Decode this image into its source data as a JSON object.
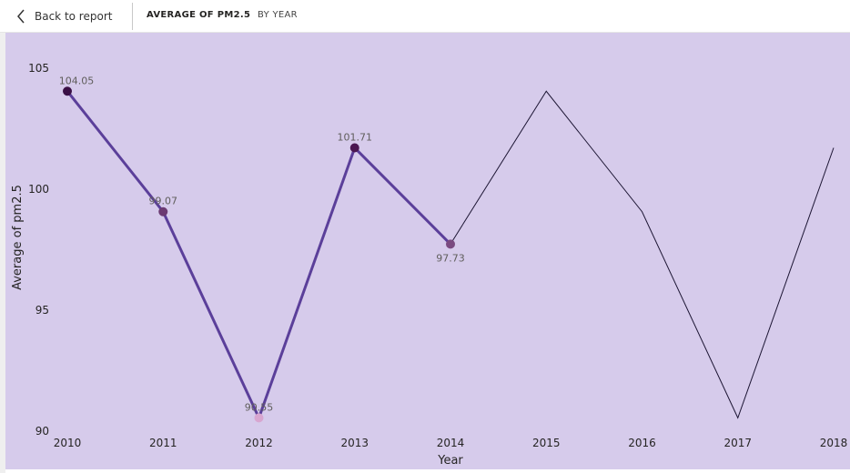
{
  "header": {
    "back_label": "Back to report",
    "title": "AVERAGE OF PM2.5",
    "subtitle": "BY YEAR"
  },
  "colors": {
    "plot_background": "#d6cbeb",
    "highlight_line": "#5b3f9a",
    "thin_line": "#1c1533"
  },
  "chart_data": {
    "type": "line",
    "title": "",
    "xlabel": "Year",
    "ylabel": "Average of pm2.5",
    "ylim": [
      90,
      106
    ],
    "y_ticks": [
      90,
      95,
      100,
      105
    ],
    "x": [
      "2010",
      "2011",
      "2012",
      "2013",
      "2014",
      "2015",
      "2016",
      "2017",
      "2018"
    ],
    "series": [
      {
        "values": [
          104.05,
          99.07,
          90.55,
          101.71,
          97.73,
          104.05,
          99.07,
          90.55,
          101.71
        ],
        "highlighted_points": 5,
        "data_labels": [
          "104.05",
          "99.07",
          "90.55",
          "101.71",
          "97.73"
        ],
        "marker_colors": [
          "#3a0f45",
          "#6b3a72",
          "#d8a6d0",
          "#4a1650",
          "#7a4a80"
        ]
      }
    ],
    "grid": false,
    "legend": "none"
  }
}
